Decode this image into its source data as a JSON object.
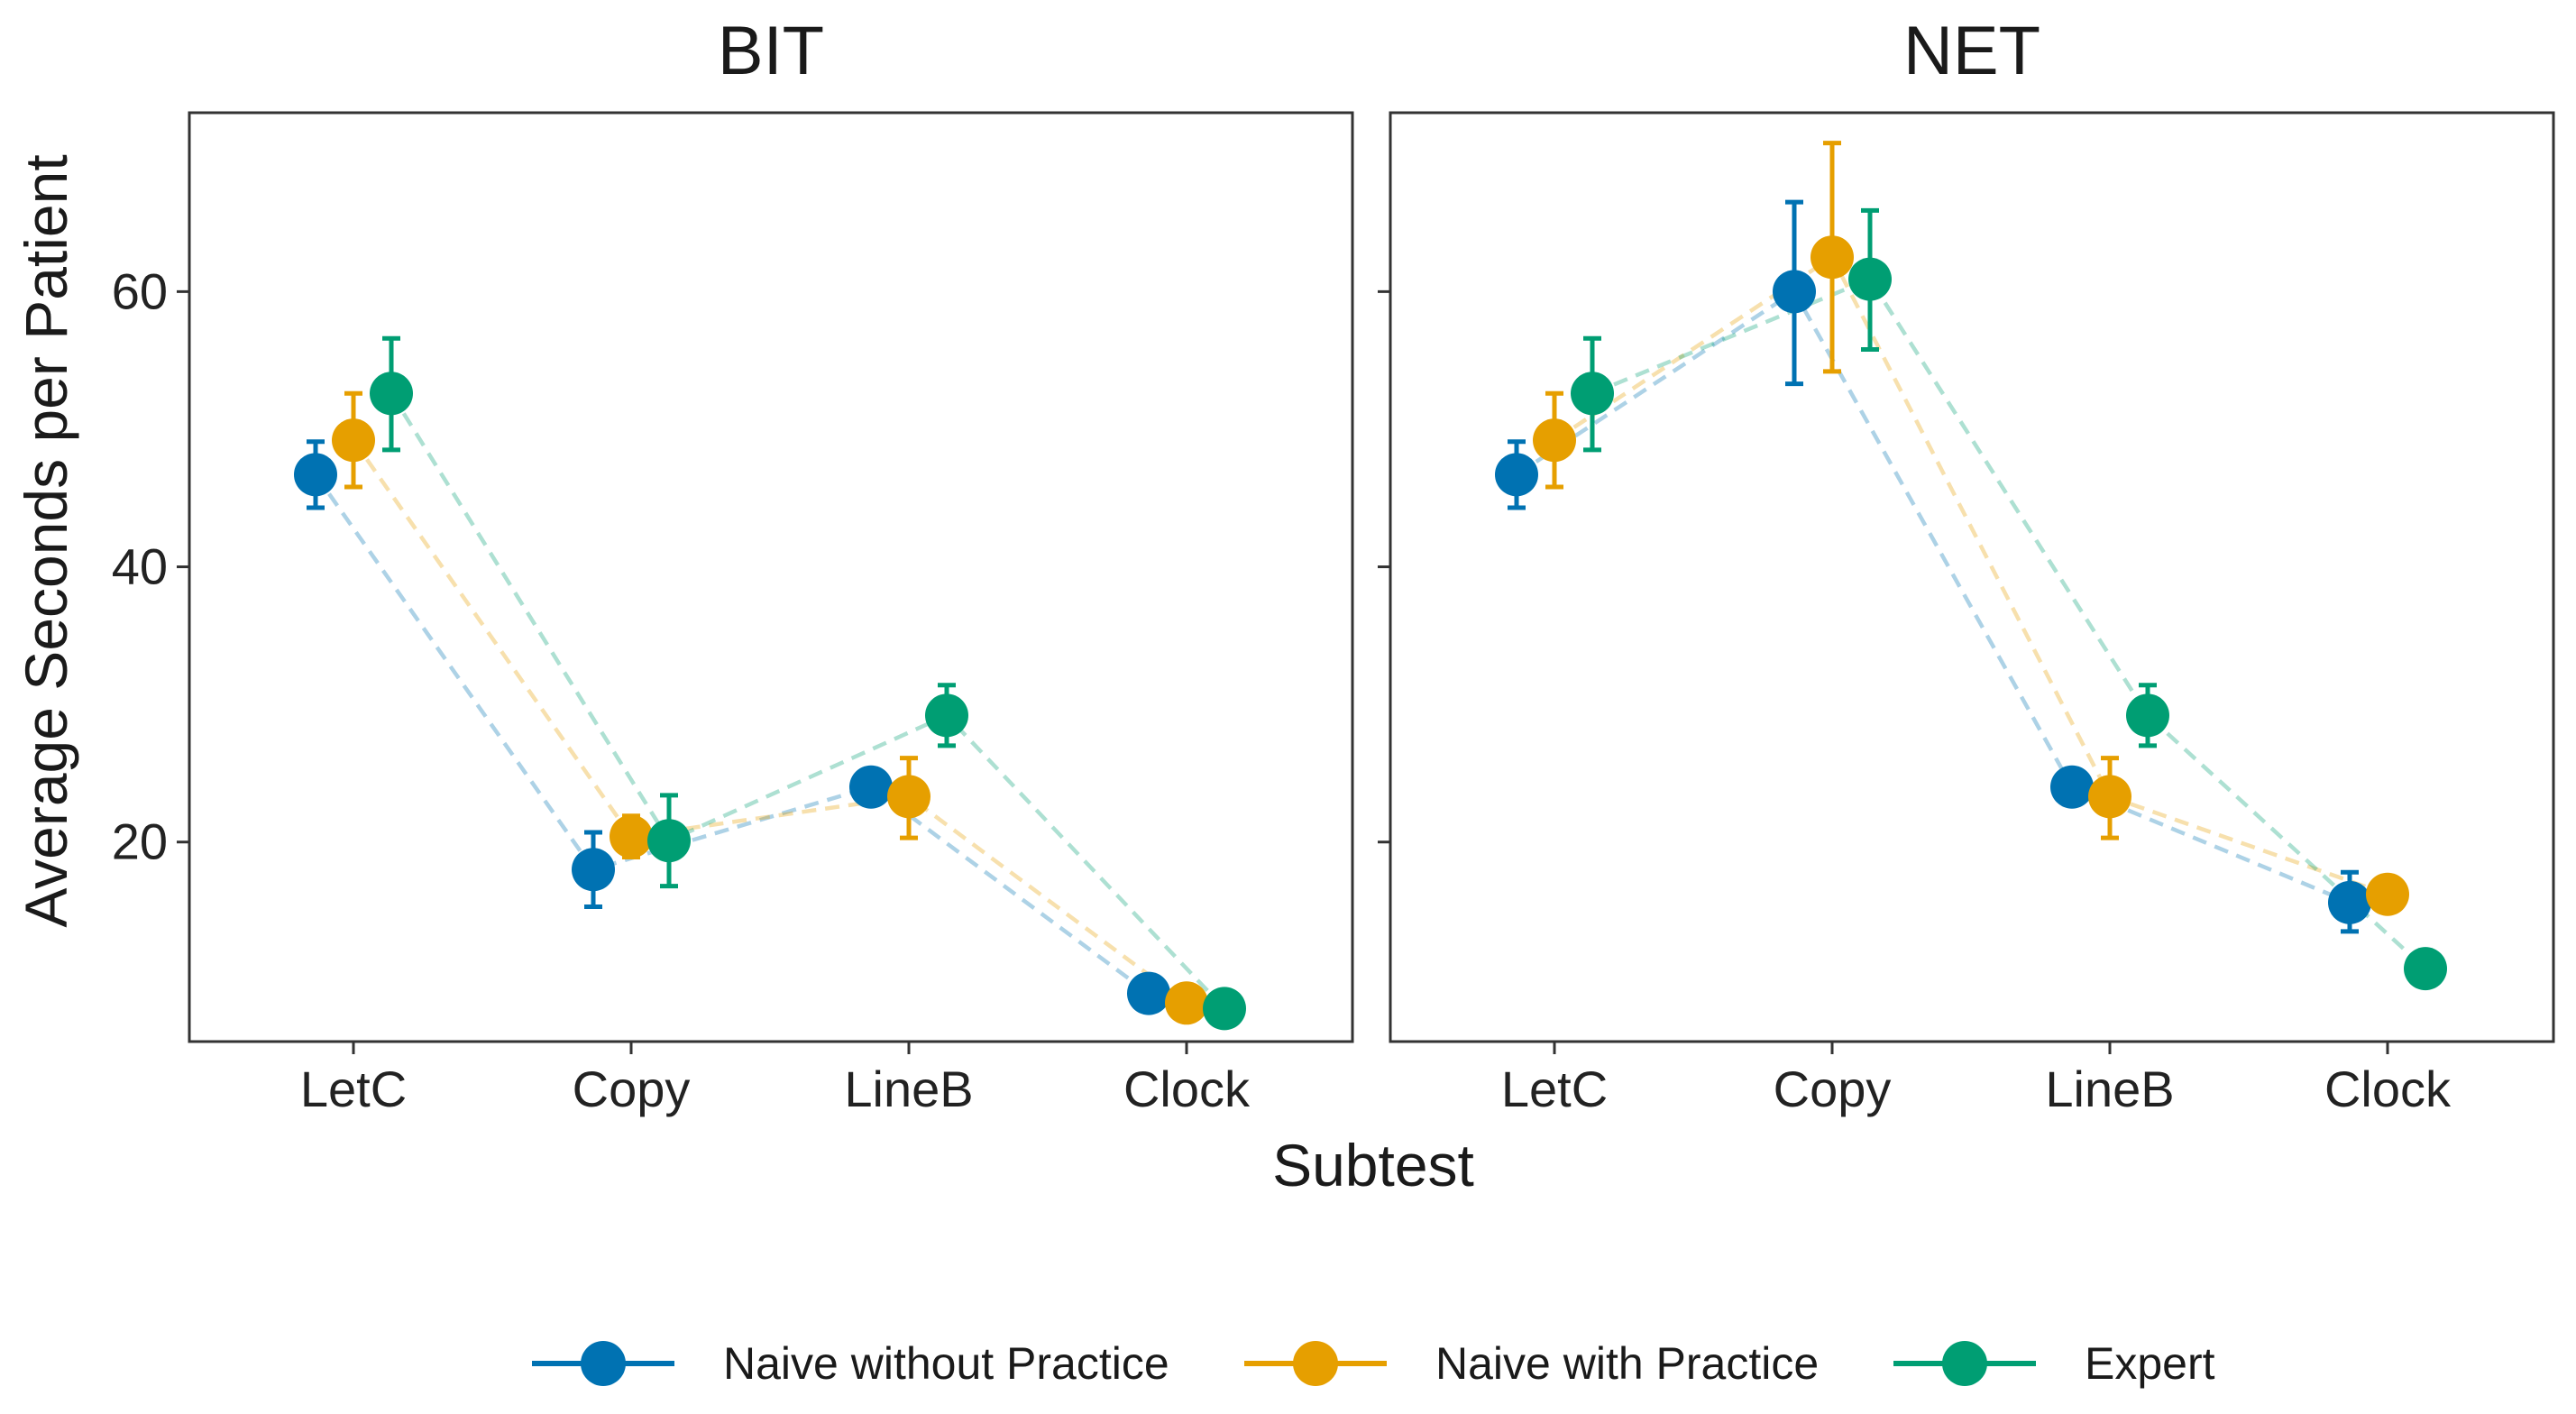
{
  "chart_data": {
    "type": "scatter",
    "facets": [
      "BIT",
      "NET"
    ],
    "categories": [
      "LetC",
      "Copy",
      "LineB",
      "Clock"
    ],
    "xlabel": "Subtest",
    "ylabel": "Average Seconds per Patient",
    "ylim": [
      5.5,
      73
    ],
    "yticks": [
      20,
      40,
      60
    ],
    "grid": false,
    "legend_position": "bottom",
    "series": [
      {
        "name": "Naive without Practice",
        "color": "#0072B2",
        "panels": {
          "BIT": {
            "values": [
              46.7,
              18.0,
              24.0,
              9.0
            ],
            "lower": [
              44.3,
              15.3,
              null,
              null
            ],
            "upper": [
              49.1,
              20.7,
              null,
              null
            ]
          },
          "NET": {
            "values": [
              46.7,
              60.0,
              24.0,
              15.6
            ],
            "lower": [
              44.3,
              53.3,
              null,
              13.5
            ],
            "upper": [
              49.1,
              66.5,
              null,
              17.8
            ]
          }
        }
      },
      {
        "name": "Naive with Practice",
        "color": "#E69F00",
        "panels": {
          "BIT": {
            "values": [
              49.2,
              20.4,
              23.3,
              8.3
            ],
            "lower": [
              45.8,
              18.9,
              20.3,
              null
            ],
            "upper": [
              52.6,
              21.9,
              26.1,
              null
            ]
          },
          "NET": {
            "values": [
              49.2,
              62.5,
              23.3,
              16.2
            ],
            "lower": [
              45.8,
              54.2,
              20.3,
              null
            ],
            "upper": [
              52.6,
              70.8,
              26.1,
              null
            ]
          }
        }
      },
      {
        "name": "Expert",
        "color": "#009E73",
        "panels": {
          "BIT": {
            "values": [
              52.6,
              20.1,
              29.2,
              7.9
            ],
            "lower": [
              48.5,
              16.8,
              27.0,
              null
            ],
            "upper": [
              56.6,
              23.4,
              31.4,
              null
            ]
          },
          "NET": {
            "values": [
              52.6,
              60.9,
              29.2,
              10.8
            ],
            "lower": [
              48.5,
              55.8,
              27.0,
              null
            ],
            "upper": [
              56.6,
              65.9,
              31.4,
              null
            ]
          }
        }
      }
    ]
  }
}
